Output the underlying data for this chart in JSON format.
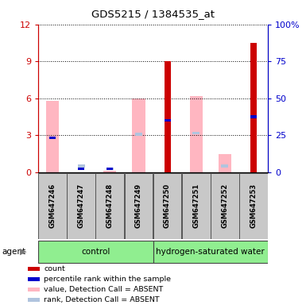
{
  "title": "GDS5215 / 1384535_at",
  "samples": [
    "GSM647246",
    "GSM647247",
    "GSM647248",
    "GSM647249",
    "GSM647250",
    "GSM647251",
    "GSM647252",
    "GSM647253"
  ],
  "ylim_left": [
    0,
    12
  ],
  "ylim_right": [
    0,
    100
  ],
  "yticks_left": [
    0,
    3,
    6,
    9,
    12
  ],
  "yticks_right": [
    0,
    25,
    50,
    75,
    100
  ],
  "ytick_labels_right": [
    "0",
    "25",
    "50",
    "75",
    "100%"
  ],
  "red_bars": [
    0,
    0,
    0,
    0,
    9.0,
    0,
    0,
    10.5
  ],
  "blue_marks": [
    2.8,
    0.3,
    0.3,
    0,
    4.2,
    0,
    0,
    4.5
  ],
  "pink_bars": [
    5.8,
    0,
    0.1,
    6.0,
    0,
    6.2,
    1.5,
    0
  ],
  "lightblue_marks": [
    0,
    0.5,
    0.3,
    3.1,
    0,
    3.2,
    0.5,
    0
  ],
  "left_axis_color": "#cc0000",
  "right_axis_color": "#0000cc",
  "group1_label": "control",
  "group2_label": "hydrogen-saturated water",
  "group_color": "#90ee90",
  "sample_box_color": "#c8c8c8",
  "legend_items": [
    [
      "#cc0000",
      "count"
    ],
    [
      "#0000cc",
      "percentile rank within the sample"
    ],
    [
      "#ffb6c1",
      "value, Detection Call = ABSENT"
    ],
    [
      "#b0c4de",
      "rank, Detection Call = ABSENT"
    ]
  ]
}
